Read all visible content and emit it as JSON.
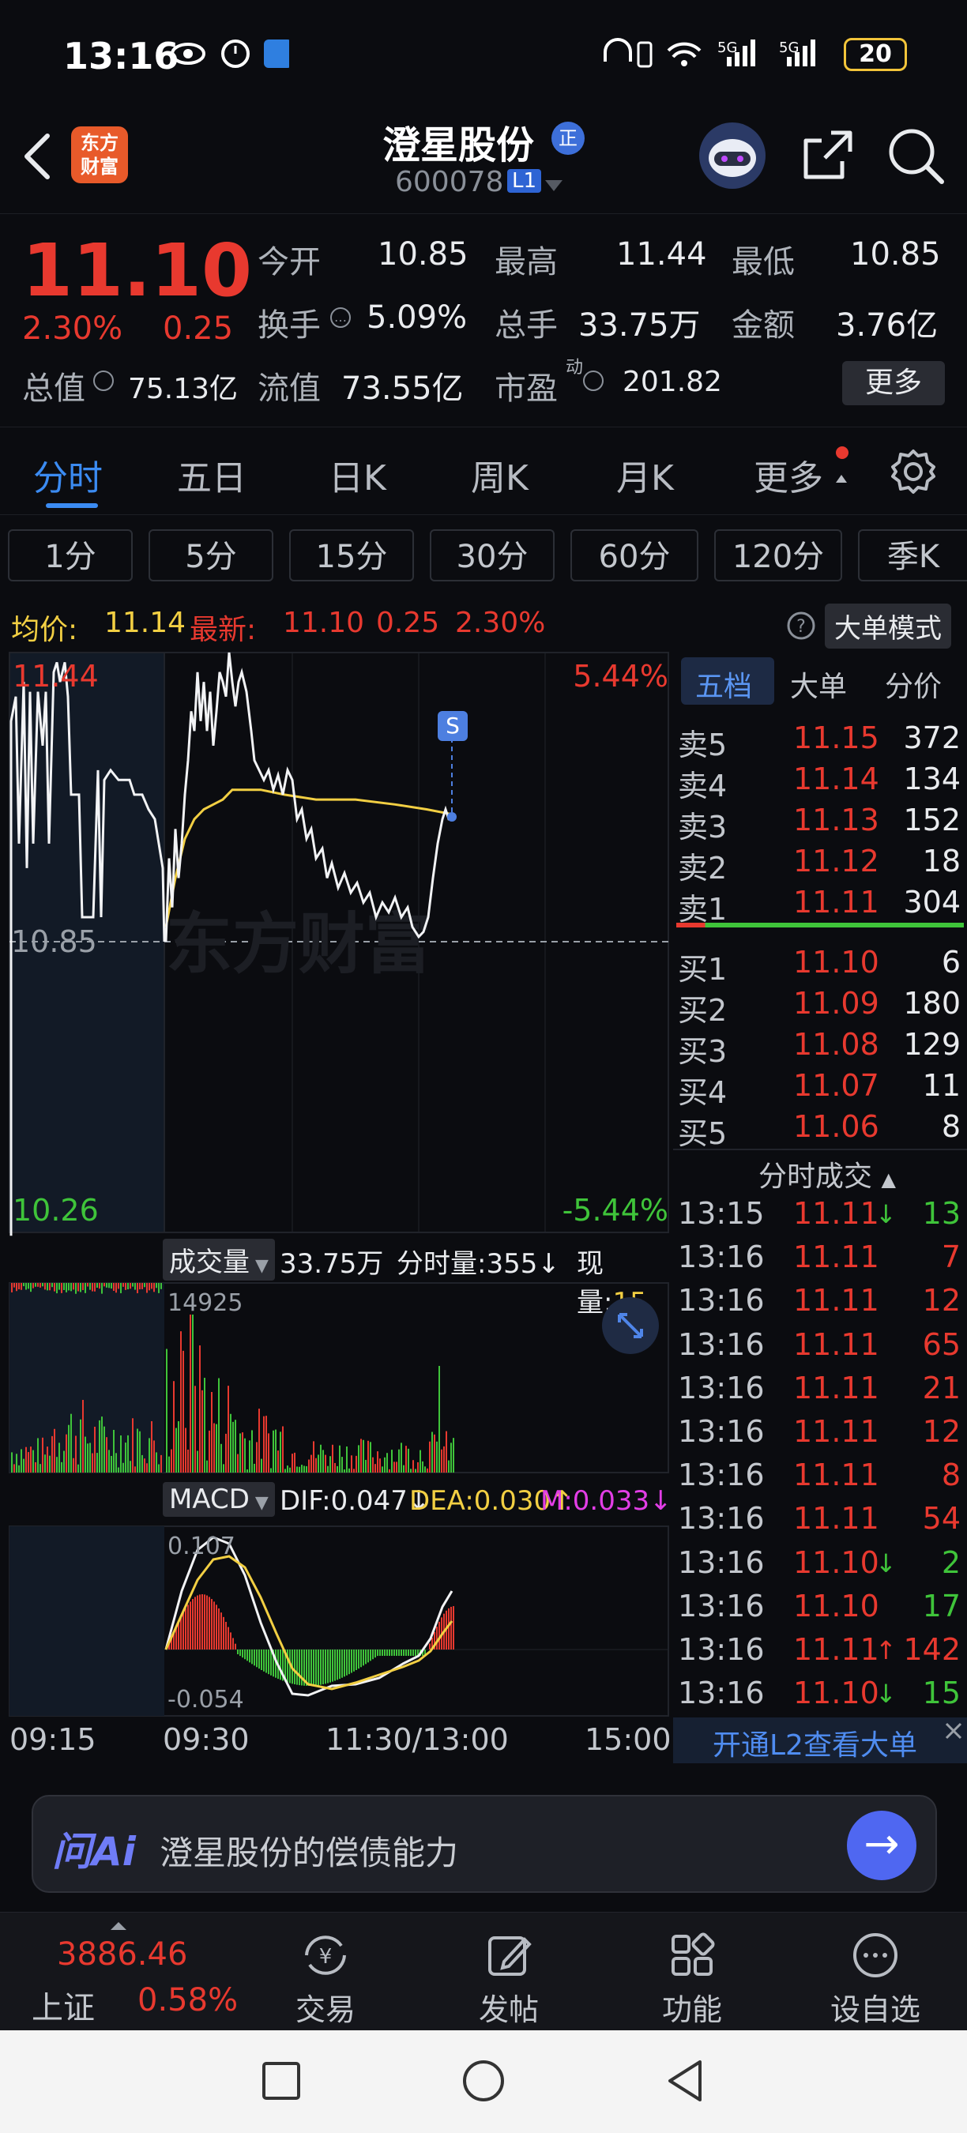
{
  "status_bar": {
    "time": "13:16",
    "network": "5G",
    "battery": "20"
  },
  "header": {
    "logo_line1": "东方",
    "logo_line2": "财富",
    "stock_name": "澄星股份",
    "badge": "正",
    "code": "600078",
    "level": "L1"
  },
  "quote": {
    "price": "11.10",
    "change_pct": "2.30%",
    "change": "0.25",
    "open_label": "今开",
    "open": "10.85",
    "high_label": "最高",
    "high": "11.44",
    "low_label": "最低",
    "low": "10.85",
    "turnover_label": "换手",
    "turnover": "5.09%",
    "volume_label": "总手",
    "volume": "33.75万",
    "amount_label": "金额",
    "amount": "3.76亿",
    "mcap_label": "总值",
    "mcap": "75.13亿",
    "float_label": "流值",
    "float": "73.55亿",
    "pe_label": "市盈",
    "pe_sup": "动",
    "pe": "201.82",
    "more": "更多"
  },
  "tabs": [
    "分时",
    "五日",
    "日K",
    "周K",
    "月K",
    "更多"
  ],
  "periods": [
    "1分",
    "5分",
    "15分",
    "30分",
    "60分",
    "120分",
    "季K"
  ],
  "avg": {
    "avg_label": "均价:",
    "avg": "11.14",
    "last_label": "最新:",
    "last": "11.10",
    "chg": "0.25",
    "pct": "2.30%",
    "mode": "大单模式"
  },
  "chart": {
    "y_top": "11.44",
    "y_mid": "10.85",
    "y_bot": "10.26",
    "pct_top": "5.44%",
    "pct_bot": "-5.44%",
    "s_marker": "S",
    "watermark": "东方财富",
    "vol_label": "成交量",
    "vol_total": "33.75万",
    "vol_min_label": "分时量:355",
    "vol_now_label": "现量:",
    "vol_now": "15",
    "vol_max": "14925",
    "macd_label": "MACD",
    "dif": "DIF:0.047",
    "dea": "DEA:0.030",
    "m": "M:0.033",
    "macd_top": "0.107",
    "macd_bot": "-0.054",
    "x_labels": [
      "09:15",
      "09:30",
      "11:30/13:00",
      "15:00"
    ]
  },
  "book": {
    "tabs": [
      "五档",
      "大单",
      "分价"
    ],
    "asks": [
      {
        "label": "卖5",
        "price": "11.15",
        "vol": "372"
      },
      {
        "label": "卖4",
        "price": "11.14",
        "vol": "134"
      },
      {
        "label": "卖3",
        "price": "11.13",
        "vol": "152"
      },
      {
        "label": "卖2",
        "price": "11.12",
        "vol": "18"
      },
      {
        "label": "卖1",
        "price": "11.11",
        "vol": "304"
      }
    ],
    "bids": [
      {
        "label": "买1",
        "price": "11.10",
        "vol": "6"
      },
      {
        "label": "买2",
        "price": "11.09",
        "vol": "180"
      },
      {
        "label": "买3",
        "price": "11.08",
        "vol": "129"
      },
      {
        "label": "买4",
        "price": "11.07",
        "vol": "11"
      },
      {
        "label": "买5",
        "price": "11.06",
        "vol": "8"
      }
    ],
    "ticks_title": "分时成交",
    "ticks": [
      {
        "time": "13:15",
        "price": "11.11",
        "arrow": "↓",
        "vol": "13",
        "dir": "down"
      },
      {
        "time": "13:16",
        "price": "11.11",
        "arrow": "",
        "vol": "7",
        "dir": "up"
      },
      {
        "time": "13:16",
        "price": "11.11",
        "arrow": "",
        "vol": "12",
        "dir": "up"
      },
      {
        "time": "13:16",
        "price": "11.11",
        "arrow": "",
        "vol": "65",
        "dir": "up"
      },
      {
        "time": "13:16",
        "price": "11.11",
        "arrow": "",
        "vol": "21",
        "dir": "up"
      },
      {
        "time": "13:16",
        "price": "11.11",
        "arrow": "",
        "vol": "12",
        "dir": "up"
      },
      {
        "time": "13:16",
        "price": "11.11",
        "arrow": "",
        "vol": "8",
        "dir": "up"
      },
      {
        "time": "13:16",
        "price": "11.11",
        "arrow": "",
        "vol": "54",
        "dir": "up"
      },
      {
        "time": "13:16",
        "price": "11.10",
        "arrow": "↓",
        "vol": "2",
        "dir": "down"
      },
      {
        "time": "13:16",
        "price": "11.10",
        "arrow": "",
        "vol": "17",
        "dir": "down"
      },
      {
        "time": "13:16",
        "price": "11.11",
        "arrow": "↑",
        "vol": "142",
        "dir": "up"
      },
      {
        "time": "13:16",
        "price": "11.10",
        "arrow": "↓",
        "vol": "15",
        "dir": "down"
      }
    ],
    "l2_banner": "开通L2查看大单"
  },
  "ai": {
    "logo": "问Ai",
    "prompt": "澄星股份的偿债能力"
  },
  "bottom_nav": {
    "index_value": "3886.46",
    "index_name": "上证",
    "index_pct": "0.58%",
    "items": [
      "交易",
      "发帖",
      "功能",
      "设自选"
    ]
  },
  "colors": {
    "up": "#e8392f",
    "down": "#3fc43a",
    "accent": "#3b8bf2",
    "avg_line": "#f2cf43"
  }
}
